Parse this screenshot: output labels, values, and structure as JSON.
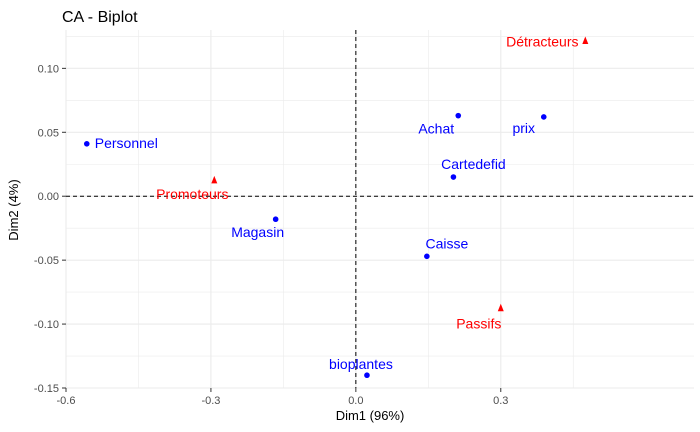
{
  "chart_data": {
    "type": "scatter",
    "title": "CA - Biplot",
    "xlabel": "Dim1 (96%)",
    "ylabel": "Dim2 (4%)",
    "xlim": [
      -0.6,
      0.7
    ],
    "ylim": [
      -0.15,
      0.13
    ],
    "x_ticks": [
      -0.6,
      -0.3,
      0.0,
      0.3
    ],
    "x_tick_labels": [
      "-0.6",
      "-0.3",
      "0.0",
      "0.3"
    ],
    "y_ticks": [
      -0.15,
      -0.1,
      -0.05,
      0.0,
      0.05,
      0.1
    ],
    "y_tick_labels": [
      "-0.15",
      "-0.10",
      "-0.05",
      "0.00",
      "0.05",
      "0.10"
    ],
    "grid": true,
    "colors": {
      "rows": "#0000FF",
      "cols": "#FF0000",
      "grid": "#ebebeb"
    },
    "series": [
      {
        "marker": "circle",
        "color": "#0000FF",
        "points": [
          {
            "label": "Personnel",
            "x": -0.557,
            "y": 0.041
          },
          {
            "label": "Magasin",
            "x": -0.166,
            "y": -0.018
          },
          {
            "label": "Achat",
            "x": 0.212,
            "y": 0.063
          },
          {
            "label": "prix",
            "x": 0.389,
            "y": 0.062
          },
          {
            "label": "Cartedefid",
            "x": 0.202,
            "y": 0.015
          },
          {
            "label": "Caisse",
            "x": 0.147,
            "y": -0.047
          },
          {
            "label": "bioplantes",
            "x": 0.023,
            "y": -0.14
          }
        ]
      },
      {
        "marker": "triangle",
        "color": "#FF0000",
        "points": [
          {
            "label": "Détracteurs",
            "x": 0.475,
            "y": 0.121
          },
          {
            "label": "Promoteurs",
            "x": -0.293,
            "y": 0.012
          },
          {
            "label": "Passifs",
            "x": 0.3,
            "y": -0.088
          }
        ]
      }
    ]
  }
}
